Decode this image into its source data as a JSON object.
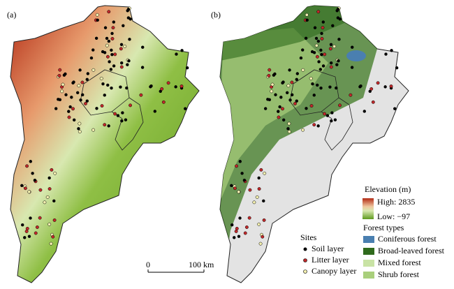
{
  "panels": {
    "a": "(a)",
    "b": "(b)"
  },
  "elevation_legend": {
    "title": "Elevation (m)",
    "high": "High: 2835",
    "low": "Low: −97"
  },
  "forest_legend": {
    "title": "Forest types",
    "items": [
      "Coniferous forest",
      "Broad-leaved forest",
      "Mixed forest",
      "Shrub forest"
    ]
  },
  "sites_legend": {
    "title": "Sites",
    "items": [
      "Soil layer",
      "Litter layer",
      "Canopy layer"
    ]
  },
  "scale_bar": {
    "start": "0",
    "end": "100 km"
  }
}
